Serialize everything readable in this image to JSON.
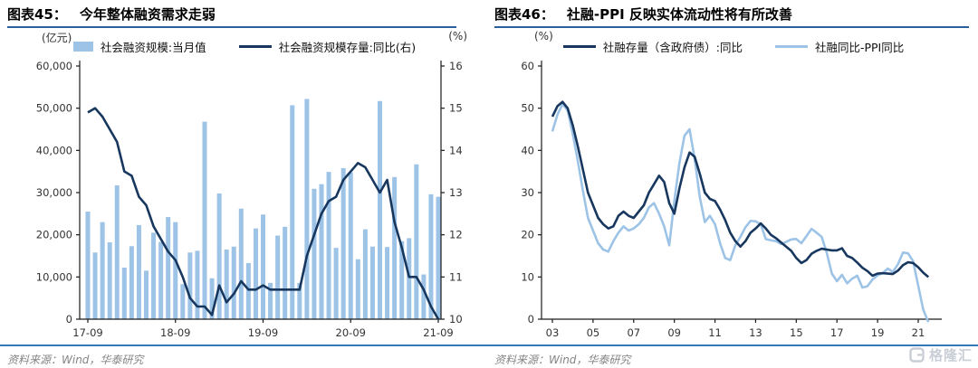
{
  "page": {
    "background": "#ffffff"
  },
  "watermark": {
    "text": "格隆汇",
    "icon": "gelonghui-logo",
    "color": "#c9ced6"
  },
  "charts": [
    {
      "label": "图表45：",
      "title": "今年整体融资需求走弱",
      "unit_left": "(亿元)",
      "unit_right": "(%)",
      "source": "资料来源：Wind，华泰研究",
      "chart_data": {
        "type": "combo",
        "categories": [
          "17-09",
          "17-10",
          "17-11",
          "17-12",
          "18-01",
          "18-02",
          "18-03",
          "18-04",
          "18-05",
          "18-06",
          "18-07",
          "18-08",
          "18-09",
          "18-10",
          "18-11",
          "18-12",
          "19-01",
          "19-02",
          "19-03",
          "19-04",
          "19-05",
          "19-06",
          "19-07",
          "19-08",
          "19-09",
          "19-10",
          "19-11",
          "19-12",
          "20-01",
          "20-02",
          "20-03",
          "20-04",
          "20-05",
          "20-06",
          "20-07",
          "20-08",
          "20-09",
          "20-10",
          "20-11",
          "20-12",
          "21-01",
          "21-02",
          "21-03",
          "21-04",
          "21-05",
          "21-06",
          "21-07",
          "21-08",
          "21-09"
        ],
        "x_tick_labels": [
          "17-09",
          "18-09",
          "19-09",
          "20-09",
          "21-09"
        ],
        "x_tick_indices": [
          0,
          12,
          24,
          36,
          48
        ],
        "ylim_left": [
          0,
          60000
        ],
        "ylim_right": [
          10,
          16
        ],
        "yticks_left": [
          0,
          10000,
          20000,
          30000,
          40000,
          50000,
          60000
        ],
        "yticks_right": [
          10,
          11,
          12,
          13,
          14,
          15,
          16
        ],
        "grid": false,
        "legend_position": "top",
        "series": [
          {
            "name": "社会融资规模:当月值",
            "type": "bar",
            "axis": "left",
            "color": "#9DC3E6",
            "values": [
              25500,
              15800,
              23000,
              18200,
              31700,
              12200,
              17300,
              22300,
              11500,
              20500,
              18300,
              24200,
              23000,
              8300,
              15800,
              16200,
              46800,
              9700,
              29800,
              16500,
              17200,
              26200,
              13300,
              21500,
              24800,
              8600,
              19800,
              21900,
              50700,
              8600,
              52200,
              30900,
              32000,
              34900,
              16900,
              35800,
              34800,
              14200,
              21300,
              17200,
              51700,
              17100,
              33700,
              18500,
              19200,
              36700,
              10600,
              29600,
              29000
            ]
          },
          {
            "name": "社会融资规模存量:同比(右)",
            "type": "line",
            "axis": "right",
            "color": "#17375E",
            "values": [
              14.9,
              15.0,
              14.8,
              14.5,
              14.2,
              13.5,
              13.4,
              12.9,
              12.7,
              12.2,
              11.9,
              11.6,
              11.4,
              11.0,
              10.5,
              10.3,
              10.3,
              10.1,
              10.8,
              10.4,
              10.6,
              10.9,
              10.7,
              10.7,
              10.8,
              10.7,
              10.7,
              10.7,
              10.7,
              10.7,
              11.5,
              12.0,
              12.5,
              12.8,
              12.9,
              13.3,
              13.5,
              13.7,
              13.6,
              13.3,
              13.0,
              13.3,
              12.3,
              11.7,
              11.0,
              11.0,
              10.7,
              10.3,
              10.0
            ]
          }
        ]
      }
    },
    {
      "label": "图表46：",
      "title": "社融-PPI 反映实体流动性将有所改善",
      "unit_left": "(%)",
      "source": "资料来源：Wind，华泰研究",
      "chart_data": {
        "type": "line",
        "x_start": 2003,
        "x_step": 0.25,
        "x_tick_labels": [
          "03",
          "05",
          "07",
          "09",
          "11",
          "13",
          "15",
          "17",
          "19",
          "21"
        ],
        "x_tick_years": [
          2003,
          2005,
          2007,
          2009,
          2011,
          2013,
          2015,
          2017,
          2019,
          2021
        ],
        "ylim": [
          0,
          60
        ],
        "yticks": [
          0,
          10,
          20,
          30,
          40,
          50,
          60
        ],
        "grid": false,
        "legend_position": "top",
        "series": [
          {
            "name": "社融存量（含政府债）:同比",
            "type": "line",
            "color": "#17375E",
            "values": [
              48,
              50.5,
              51.5,
              50,
              46,
              41,
              35.5,
              30,
              27,
              24,
              22.5,
              21.5,
              22,
              24.5,
              25.5,
              24.5,
              24,
              25.5,
              27,
              30,
              32,
              34,
              32.5,
              27.5,
              25,
              31,
              36,
              39.5,
              38.5,
              34.5,
              30,
              28.5,
              28,
              26,
              23.5,
              20.5,
              18.5,
              17.2,
              18.5,
              20.5,
              21.5,
              22.7,
              21.5,
              20,
              19.2,
              18.2,
              17.2,
              16.2,
              14.5,
              13.3,
              14,
              15.5,
              16.2,
              16.7,
              16.5,
              16.3,
              16.3,
              16.8,
              15,
              14.5,
              13.4,
              12.2,
              11.4,
              10.3,
              10.8,
              10.9,
              10.8,
              10.7,
              11.5,
              12.8,
              13.5,
              13.3,
              12.3,
              11,
              10
            ]
          },
          {
            "name": "社融同比-PPI同比",
            "type": "line",
            "color": "#9DC3E6",
            "values": [
              44.5,
              48.5,
              51,
              49.5,
              44,
              37.5,
              30.5,
              24,
              21,
              18,
              16.5,
              16,
              18.5,
              20.5,
              22,
              21,
              21.5,
              22.5,
              24,
              26.5,
              27.5,
              25,
              22,
              17.5,
              28,
              37,
              43.5,
              45,
              38,
              29,
              23,
              24.5,
              22.5,
              18,
              14.5,
              14,
              17.5,
              19.5,
              21.8,
              23.3,
              23.2,
              22.5,
              19,
              18.7,
              18.5,
              17.8,
              18.3,
              18.9,
              19,
              18,
              19.7,
              21.4,
              20.5,
              19.5,
              15.7,
              10.8,
              9,
              10.5,
              8.5,
              9.6,
              10.3,
              7.5,
              7.8,
              9.4,
              10.4,
              10.9,
              12,
              11.2,
              13,
              15.8,
              15.6,
              13.7,
              7.9,
              2.2,
              -0.7
            ]
          }
        ]
      }
    }
  ]
}
